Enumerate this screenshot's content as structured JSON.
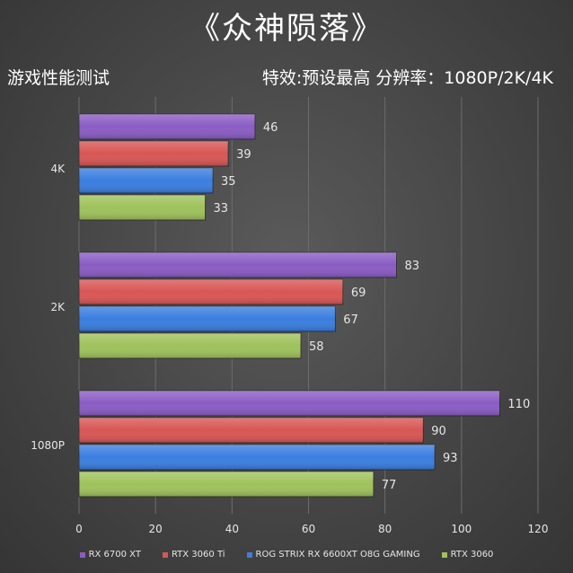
{
  "title": "《众神陨落》",
  "subtitle_left": "游戏性能测试",
  "subtitle_right": "特效:预设最高  分辨率：1080P/2K/4K",
  "chart_data": {
    "type": "bar",
    "orientation": "horizontal",
    "categories": [
      "4K",
      "2K",
      "1080P"
    ],
    "series": [
      {
        "name": "RX 6700 XT",
        "color": "#8a5cc4",
        "values": [
          46,
          83,
          110
        ]
      },
      {
        "name": "RTX 3060 Ti",
        "color": "#d85654",
        "values": [
          39,
          69,
          90
        ]
      },
      {
        "name": "ROG STRIX RX 6600XT O8G GAMING",
        "color": "#3a7ee0",
        "values": [
          35,
          67,
          93
        ]
      },
      {
        "name": "RTX 3060",
        "color": "#9fc25b",
        "values": [
          33,
          58,
          77
        ]
      }
    ],
    "xlim": [
      0,
      120
    ],
    "xticks": [
      0,
      20,
      40,
      60,
      80,
      100,
      120
    ],
    "grid": "vertical",
    "legend_position": "bottom"
  }
}
